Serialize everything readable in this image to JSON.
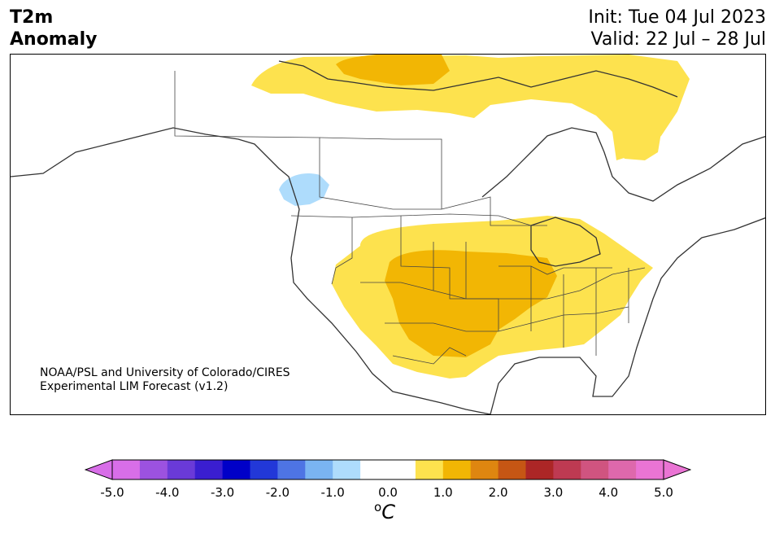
{
  "title": {
    "line1": "T2m",
    "line2": "Anomaly",
    "init": "Init: Tue 04 Jul 2023",
    "valid": "Valid: 22 Jul – 28 Jul"
  },
  "credit": {
    "line1": "NOAA/PSL and University of Colorado/CIRES",
    "line2": "Experimental LIM Forecast (v1.2)"
  },
  "colorbar": {
    "colors": [
      "#d86ee8",
      "#9c52e0",
      "#6a3ad8",
      "#3a1ed0",
      "#0000c8",
      "#2238d8",
      "#4e74e4",
      "#7ab4f2",
      "#aedcfc",
      "#ffffff",
      "#ffffff",
      "#fde24e",
      "#f2b604",
      "#df8610",
      "#c65614",
      "#ac2626",
      "#be3a52",
      "#d05480",
      "#de68ac",
      "#ea74d4"
    ],
    "min_color": "#d86ee8",
    "max_color": "#ea74d4",
    "ticks": [
      "-5.0",
      "-4.0",
      "-3.0",
      "-2.0",
      "-1.0",
      "0.0",
      "1.0",
      "2.0",
      "3.0",
      "4.0",
      "5.0"
    ],
    "unit_base": "C",
    "unit_sup": "o"
  },
  "palette": {
    "light_yellow": "#fde24e",
    "gold": "#f2b604",
    "light_blue": "#aedcfc"
  }
}
